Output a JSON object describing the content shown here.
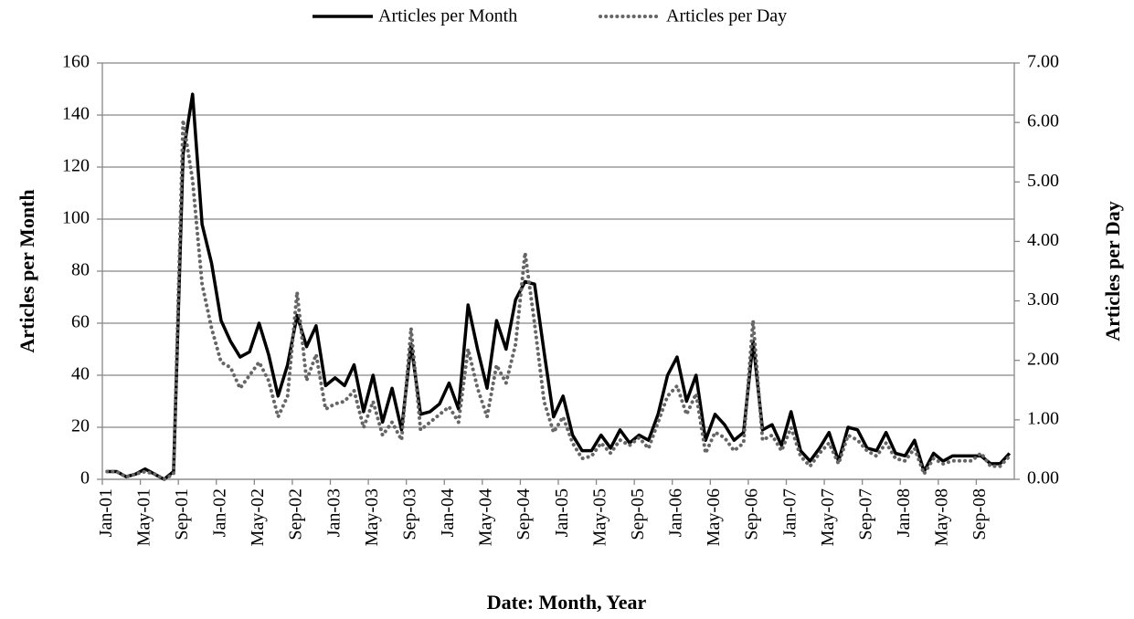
{
  "chart_data": {
    "type": "line",
    "xlabel": "Date: Month, Year",
    "ylabel": "Articles per Month",
    "y2label": "Articles per Day",
    "categories": [
      "Jan-01",
      null,
      null,
      null,
      "May-01",
      null,
      null,
      null,
      "Sep-01",
      null,
      null,
      null,
      "Jan-02",
      null,
      null,
      null,
      "May-02",
      null,
      null,
      null,
      "Sep-02",
      null,
      null,
      null,
      "Jan-03",
      null,
      null,
      null,
      "May-03",
      null,
      null,
      null,
      "Sep-03",
      null,
      null,
      null,
      "Jan-04",
      null,
      null,
      null,
      "May-04",
      null,
      null,
      null,
      "Sep-04",
      null,
      null,
      null,
      "Jan-05",
      null,
      null,
      null,
      "May-05",
      null,
      null,
      null,
      "Sep-05",
      null,
      null,
      null,
      "Jan-06",
      null,
      null,
      null,
      "May-06",
      null,
      null,
      null,
      "Sep-06",
      null,
      null,
      null,
      "Jan-07",
      null,
      null,
      null,
      "May-07",
      null,
      null,
      null,
      "Sep-07",
      null,
      null,
      null,
      "Jan-08",
      null,
      null,
      null,
      "May-08",
      null,
      null,
      null,
      "Sep-08",
      null,
      null,
      null
    ],
    "series": [
      {
        "name": "Articles per Month",
        "color": "#000000",
        "style": "solid",
        "axis": "y",
        "values": [
          3,
          3,
          1,
          2,
          4,
          2,
          0,
          3,
          125,
          148,
          98,
          83,
          61,
          53,
          47,
          49,
          60,
          48,
          32,
          44,
          63,
          51,
          59,
          36,
          39,
          36,
          44,
          26,
          40,
          22,
          35,
          19,
          52,
          25,
          26,
          29,
          37,
          27,
          67,
          50,
          35,
          61,
          50,
          69,
          76,
          75,
          49,
          24,
          32,
          17,
          11,
          11,
          17,
          12,
          19,
          14,
          17,
          15,
          25,
          40,
          47,
          30,
          40,
          15,
          25,
          21,
          15,
          18,
          53,
          19,
          21,
          13,
          26,
          11,
          7,
          12,
          18,
          7,
          20,
          19,
          12,
          11,
          18,
          10,
          9,
          15,
          3,
          10,
          7,
          9,
          9,
          9,
          9,
          6,
          6,
          10
        ]
      },
      {
        "name": "Articles per Day",
        "color": "#666666",
        "style": "dotted",
        "axis": "y2",
        "values": [
          0.13,
          0.13,
          0.04,
          0.09,
          0.13,
          0.09,
          0,
          0.09,
          6.04,
          5.03,
          3.28,
          2.54,
          1.97,
          1.88,
          1.53,
          1.75,
          1.97,
          1.66,
          1.05,
          1.4,
          3.15,
          1.66,
          2.1,
          1.18,
          1.27,
          1.31,
          1.49,
          0.87,
          1.31,
          0.74,
          0.96,
          0.66,
          2.54,
          0.83,
          0.96,
          1.09,
          1.22,
          0.96,
          2.19,
          1.53,
          1.05,
          1.92,
          1.62,
          2.27,
          3.81,
          2.62,
          1.31,
          0.79,
          1.05,
          0.61,
          0.35,
          0.39,
          0.61,
          0.44,
          0.66,
          0.57,
          0.7,
          0.52,
          0.96,
          1.4,
          1.57,
          1.09,
          1.44,
          0.44,
          0.79,
          0.7,
          0.48,
          0.61,
          2.67,
          0.66,
          0.74,
          0.48,
          0.87,
          0.39,
          0.22,
          0.44,
          0.61,
          0.26,
          0.74,
          0.66,
          0.48,
          0.39,
          0.61,
          0.35,
          0.31,
          0.52,
          0.09,
          0.35,
          0.26,
          0.31,
          0.31,
          0.31,
          0.44,
          0.22,
          0.22,
          0.39
        ]
      }
    ],
    "ylim": [
      0,
      160
    ],
    "yticks": [
      0,
      20,
      40,
      60,
      80,
      100,
      120,
      140,
      160
    ],
    "y2lim": [
      0,
      7
    ],
    "y2ticks": [
      {
        "value": 0,
        "label": "0.00"
      },
      {
        "value": 1,
        "label": "1.00"
      },
      {
        "value": 2,
        "label": "2.00"
      },
      {
        "value": 3,
        "label": "3.00"
      },
      {
        "value": 4,
        "label": "4.00"
      },
      {
        "value": 5,
        "label": "5.00"
      },
      {
        "value": 6,
        "label": "6.00"
      },
      {
        "value": 7,
        "label": "7.00"
      }
    ],
    "grid": true,
    "legend": "top"
  }
}
